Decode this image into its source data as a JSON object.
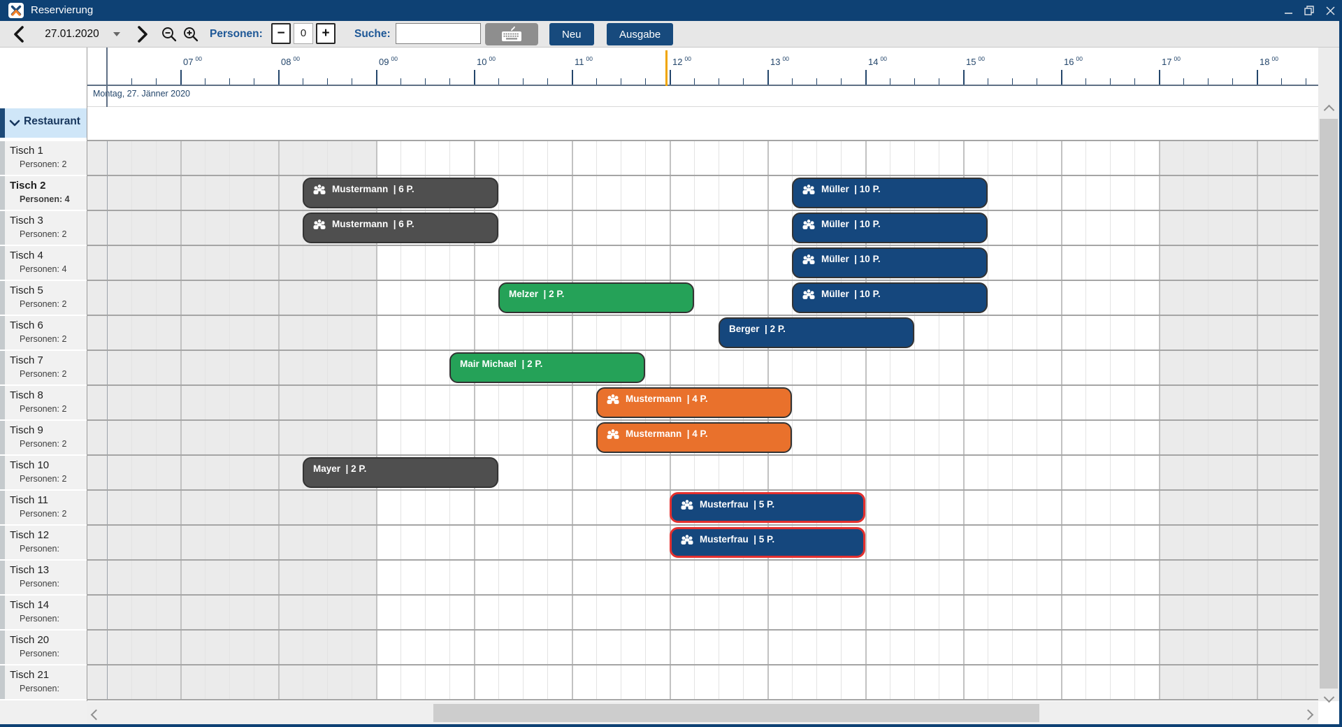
{
  "window": {
    "title": "Reservierung"
  },
  "toolbar": {
    "date_value": "27.01.2020",
    "personen_label": "Personen:",
    "personen_value": "0",
    "suche_label": "Suche:",
    "search_value": "",
    "neu_button": "Neu",
    "ausgabe_button": "Ausgabe"
  },
  "timeline": {
    "day_label": "Montag, 27. Jänner 2020",
    "start_time": "06:00",
    "end_time": "18:45",
    "hour_labels": [
      "07",
      "08",
      "09",
      "10",
      "11",
      "12",
      "13",
      "14",
      "15",
      "16",
      "17",
      "18"
    ],
    "minute_superscript": "00",
    "open_hours": {
      "start": "09:00",
      "end": "17:00"
    },
    "current_time": "11:58"
  },
  "sidebar": {
    "group_label": "Restaurant",
    "tables": [
      {
        "name": "Tisch 1",
        "persons_label": "Personen: 2",
        "selected": false
      },
      {
        "name": "Tisch 2",
        "persons_label": "Personen: 4",
        "selected": true
      },
      {
        "name": "Tisch 3",
        "persons_label": "Personen: 2",
        "selected": false
      },
      {
        "name": "Tisch 4",
        "persons_label": "Personen: 4",
        "selected": false
      },
      {
        "name": "Tisch 5",
        "persons_label": "Personen: 2",
        "selected": false
      },
      {
        "name": "Tisch 6",
        "persons_label": "Personen: 2",
        "selected": false
      },
      {
        "name": "Tisch 7",
        "persons_label": "Personen: 2",
        "selected": false
      },
      {
        "name": "Tisch 8",
        "persons_label": "Personen: 2",
        "selected": false
      },
      {
        "name": "Tisch 9",
        "persons_label": "Personen: 2",
        "selected": false
      },
      {
        "name": "Tisch 10",
        "persons_label": "Personen: 2",
        "selected": false
      },
      {
        "name": "Tisch 11",
        "persons_label": "Personen: 2",
        "selected": false
      },
      {
        "name": "Tisch 12",
        "persons_label": "Personen:",
        "selected": false
      },
      {
        "name": "Tisch 13",
        "persons_label": "Personen:",
        "selected": false
      },
      {
        "name": "Tisch 14",
        "persons_label": "Personen:",
        "selected": false
      },
      {
        "name": "Tisch 20",
        "persons_label": "Personen:",
        "selected": false
      },
      {
        "name": "Tisch 21",
        "persons_label": "Personen:",
        "selected": false
      }
    ]
  },
  "format": {
    "label_separator": "  | "
  },
  "reservations": [
    {
      "table": "Tisch 2",
      "name": "Mustermann",
      "persons": "6 P.",
      "start": "08:15",
      "end": "10:15",
      "color": "gray",
      "group_icon": true,
      "selected": false
    },
    {
      "table": "Tisch 2",
      "name": "Müller",
      "persons": "10 P.",
      "start": "13:15",
      "end": "15:15",
      "color": "blue",
      "group_icon": true,
      "selected": false
    },
    {
      "table": "Tisch 3",
      "name": "Mustermann",
      "persons": "6 P.",
      "start": "08:15",
      "end": "10:15",
      "color": "gray",
      "group_icon": true,
      "selected": false
    },
    {
      "table": "Tisch 3",
      "name": "Müller",
      "persons": "10 P.",
      "start": "13:15",
      "end": "15:15",
      "color": "blue",
      "group_icon": true,
      "selected": false
    },
    {
      "table": "Tisch 4",
      "name": "Müller",
      "persons": "10 P.",
      "start": "13:15",
      "end": "15:15",
      "color": "blue",
      "group_icon": true,
      "selected": false
    },
    {
      "table": "Tisch 5",
      "name": "Melzer",
      "persons": "2 P.",
      "start": "10:15",
      "end": "12:15",
      "color": "green",
      "group_icon": false,
      "selected": false
    },
    {
      "table": "Tisch 5",
      "name": "Müller",
      "persons": "10 P.",
      "start": "13:15",
      "end": "15:15",
      "color": "blue",
      "group_icon": true,
      "selected": false
    },
    {
      "table": "Tisch 6",
      "name": "Berger",
      "persons": "2 P.",
      "start": "12:30",
      "end": "14:30",
      "color": "blue",
      "group_icon": false,
      "selected": false
    },
    {
      "table": "Tisch 7",
      "name": "Mair Michael",
      "persons": "2 P.",
      "start": "09:45",
      "end": "11:45",
      "color": "green",
      "group_icon": false,
      "selected": false
    },
    {
      "table": "Tisch 8",
      "name": "Mustermann",
      "persons": "4 P.",
      "start": "11:15",
      "end": "13:15",
      "color": "orange",
      "group_icon": true,
      "selected": false
    },
    {
      "table": "Tisch 9",
      "name": "Mustermann",
      "persons": "4 P.",
      "start": "11:15",
      "end": "13:15",
      "color": "orange",
      "group_icon": true,
      "selected": false
    },
    {
      "table": "Tisch 10",
      "name": "Mayer",
      "persons": "2 P.",
      "start": "08:15",
      "end": "10:15",
      "color": "gray",
      "group_icon": false,
      "selected": false
    },
    {
      "table": "Tisch 11",
      "name": "Musterfrau",
      "persons": "5 P.",
      "start": "12:00",
      "end": "14:00",
      "color": "blue",
      "group_icon": true,
      "selected": true
    },
    {
      "table": "Tisch 12",
      "name": "Musterfrau",
      "persons": "5 P.",
      "start": "12:00",
      "end": "14:00",
      "color": "blue",
      "group_icon": true,
      "selected": true
    }
  ],
  "colors": {
    "titlebar": "#0e4174",
    "accent_navy": "#174a7d",
    "label_blue": "#1d5796",
    "bar_gray": "#4f4f4f",
    "bar_blue": "#15477d",
    "bar_green": "#25a258",
    "bar_orange": "#e9712c",
    "selected_border": "#e3312f",
    "current_time": "#f0a500",
    "open_bg": "#ffffff",
    "closed_bg": "#ebebeb"
  }
}
